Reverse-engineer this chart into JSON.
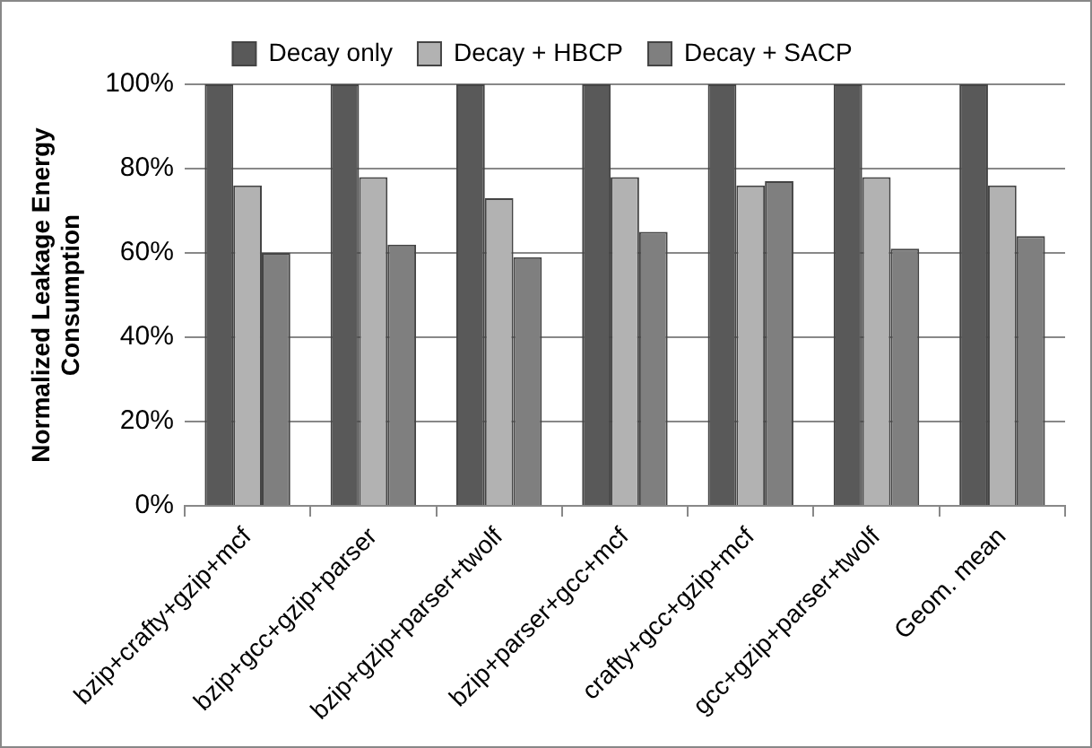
{
  "chart_data": {
    "type": "bar",
    "ylabel": "Normalized Leakage Energy Consumption",
    "categories": [
      "bzip+crafty+gzip+mcf",
      "bzip+gcc+gzip+parser",
      "bzip+gzip+parser+twolf",
      "bzip+parser+gcc+mcf",
      "crafty+gcc+gzip+mcf",
      "gcc+gzip+parser+twolf",
      "Geom. mean"
    ],
    "series": [
      {
        "name": "Decay only",
        "color": "#595959",
        "values": [
          100,
          100,
          100,
          100,
          100,
          100,
          100
        ]
      },
      {
        "name": "Decay + HBCP",
        "color": "#b2b2b2",
        "values": [
          76,
          78,
          73,
          78,
          76,
          78,
          76
        ]
      },
      {
        "name": "Decay + SACP",
        "color": "#7f7f7f",
        "values": [
          60,
          62,
          59,
          65,
          77,
          61,
          64
        ]
      }
    ],
    "ylim": [
      0,
      100
    ],
    "yticks": [
      {
        "value": 0,
        "label": "0%"
      },
      {
        "value": 20,
        "label": "20%"
      },
      {
        "value": 40,
        "label": "40%"
      },
      {
        "value": 60,
        "label": "60%"
      },
      {
        "value": 80,
        "label": "80%"
      },
      {
        "value": 100,
        "label": "100%"
      }
    ],
    "grid": "y",
    "legend": "top"
  }
}
